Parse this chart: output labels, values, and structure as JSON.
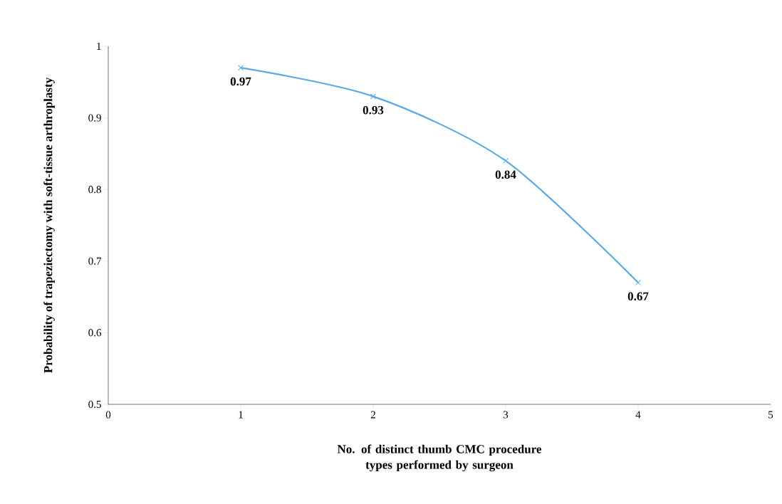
{
  "chart_data": {
    "type": "line",
    "xlabel": "No. of distinct thumb CMC procedure types performed by surgeon",
    "ylabel": "Probability of trapeziectomy with soft-tissue arthroplasty",
    "x": [
      1,
      2,
      3,
      4
    ],
    "series": [
      {
        "color": "#5aa9e6",
        "values": [
          0.97,
          0.93,
          0.84,
          0.67
        ]
      }
    ],
    "data_labels": true,
    "marker": "cross",
    "xlim": [
      0,
      5
    ],
    "xticks": [
      0,
      1,
      2,
      3,
      4,
      5
    ],
    "ylim": [
      0.5,
      1
    ],
    "yticks": [
      0.5,
      0.6,
      0.7,
      0.8,
      0.9,
      1
    ],
    "grid": false
  }
}
